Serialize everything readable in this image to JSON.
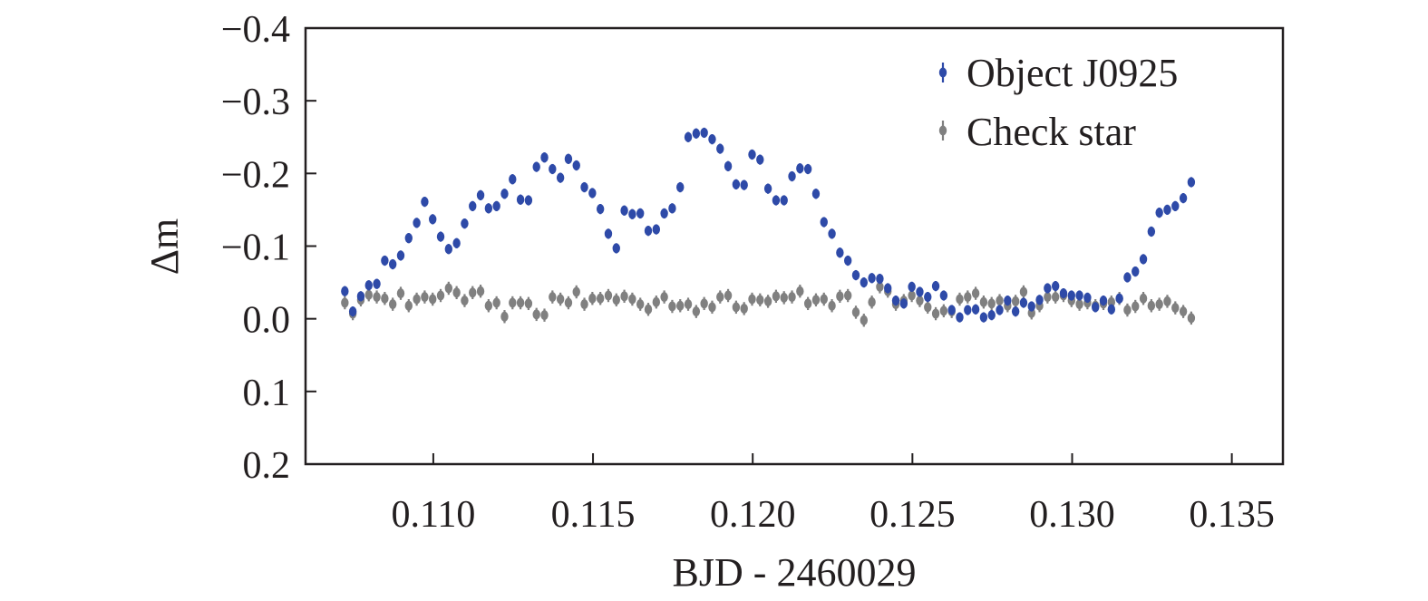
{
  "chart_data": {
    "type": "scatter",
    "title": "",
    "xlabel": "BJD - 2460029",
    "ylabel": "Δm",
    "xlim": [
      0.106,
      0.1366
    ],
    "ylim": [
      0.2,
      -0.4
    ],
    "y_inverted": true,
    "grid": false,
    "legend_position": "top-right",
    "x_ticks": [
      {
        "value": 0.11,
        "label": "0.110"
      },
      {
        "value": 0.115,
        "label": "0.115"
      },
      {
        "value": 0.12,
        "label": "0.120"
      },
      {
        "value": 0.125,
        "label": "0.125"
      },
      {
        "value": 0.13,
        "label": "0.130"
      },
      {
        "value": 0.135,
        "label": "0.135"
      }
    ],
    "y_ticks": [
      {
        "value": -0.4,
        "label": "−0.4"
      },
      {
        "value": -0.3,
        "label": "−0.3"
      },
      {
        "value": -0.2,
        "label": "−0.2"
      },
      {
        "value": -0.1,
        "label": "−0.1"
      },
      {
        "value": 0.0,
        "label": "0.0"
      },
      {
        "value": 0.1,
        "label": "0.1"
      },
      {
        "value": 0.2,
        "label": "0.2"
      }
    ],
    "series": [
      {
        "name": "Object J0925",
        "color": "#2e4aa8",
        "error": 0.007,
        "points": [
          [
            0.10723,
            -0.038
          ],
          [
            0.10748,
            -0.01
          ],
          [
            0.10773,
            -0.031
          ],
          [
            0.10798,
            -0.046
          ],
          [
            0.10823,
            -0.048
          ],
          [
            0.10848,
            -0.08
          ],
          [
            0.10873,
            -0.075
          ],
          [
            0.10898,
            -0.087
          ],
          [
            0.10923,
            -0.111
          ],
          [
            0.10948,
            -0.132
          ],
          [
            0.10973,
            -0.161
          ],
          [
            0.10998,
            -0.137
          ],
          [
            0.11023,
            -0.113
          ],
          [
            0.11048,
            -0.096
          ],
          [
            0.11073,
            -0.104
          ],
          [
            0.11098,
            -0.131
          ],
          [
            0.11123,
            -0.155
          ],
          [
            0.11148,
            -0.17
          ],
          [
            0.11173,
            -0.152
          ],
          [
            0.11198,
            -0.155
          ],
          [
            0.11223,
            -0.172
          ],
          [
            0.11248,
            -0.192
          ],
          [
            0.11273,
            -0.164
          ],
          [
            0.11298,
            -0.163
          ],
          [
            0.11323,
            -0.209
          ],
          [
            0.11348,
            -0.222
          ],
          [
            0.11373,
            -0.206
          ],
          [
            0.11398,
            -0.194
          ],
          [
            0.11423,
            -0.22
          ],
          [
            0.11448,
            -0.211
          ],
          [
            0.11473,
            -0.181
          ],
          [
            0.11498,
            -0.173
          ],
          [
            0.11523,
            -0.151
          ],
          [
            0.11548,
            -0.117
          ],
          [
            0.11573,
            -0.097
          ],
          [
            0.11598,
            -0.149
          ],
          [
            0.11623,
            -0.144
          ],
          [
            0.11648,
            -0.145
          ],
          [
            0.11673,
            -0.121
          ],
          [
            0.11698,
            -0.123
          ],
          [
            0.11723,
            -0.145
          ],
          [
            0.11748,
            -0.152
          ],
          [
            0.11773,
            -0.181
          ],
          [
            0.11798,
            -0.25
          ],
          [
            0.11823,
            -0.255
          ],
          [
            0.11848,
            -0.256
          ],
          [
            0.11873,
            -0.247
          ],
          [
            0.11898,
            -0.234
          ],
          [
            0.11923,
            -0.21
          ],
          [
            0.11948,
            -0.185
          ],
          [
            0.11973,
            -0.184
          ],
          [
            0.11998,
            -0.226
          ],
          [
            0.12023,
            -0.219
          ],
          [
            0.12048,
            -0.179
          ],
          [
            0.12073,
            -0.163
          ],
          [
            0.12098,
            -0.163
          ],
          [
            0.12123,
            -0.196
          ],
          [
            0.12148,
            -0.207
          ],
          [
            0.12173,
            -0.206
          ],
          [
            0.12198,
            -0.172
          ],
          [
            0.12223,
            -0.133
          ],
          [
            0.12248,
            -0.117
          ],
          [
            0.12273,
            -0.091
          ],
          [
            0.12298,
            -0.08
          ],
          [
            0.12323,
            -0.06
          ],
          [
            0.12348,
            -0.05
          ],
          [
            0.12373,
            -0.056
          ],
          [
            0.12398,
            -0.055
          ],
          [
            0.12423,
            -0.042
          ],
          [
            0.12448,
            -0.025
          ],
          [
            0.12473,
            -0.021
          ],
          [
            0.12498,
            -0.044
          ],
          [
            0.12523,
            -0.037
          ],
          [
            0.12548,
            -0.03
          ],
          [
            0.12573,
            -0.045
          ],
          [
            0.12598,
            -0.032
          ],
          [
            0.12623,
            -0.012
          ],
          [
            0.12648,
            -0.002
          ],
          [
            0.12673,
            -0.012
          ],
          [
            0.12698,
            -0.013
          ],
          [
            0.12723,
            -0.002
          ],
          [
            0.12748,
            -0.005
          ],
          [
            0.12773,
            -0.012
          ],
          [
            0.12798,
            -0.025
          ],
          [
            0.12823,
            -0.01
          ],
          [
            0.12848,
            -0.022
          ],
          [
            0.12873,
            -0.017
          ],
          [
            0.12898,
            -0.026
          ],
          [
            0.12923,
            -0.042
          ],
          [
            0.12948,
            -0.045
          ],
          [
            0.12973,
            -0.035
          ],
          [
            0.12998,
            -0.032
          ],
          [
            0.13023,
            -0.032
          ],
          [
            0.13048,
            -0.029
          ],
          [
            0.13073,
            -0.016
          ],
          [
            0.13098,
            -0.025
          ],
          [
            0.13123,
            -0.013
          ],
          [
            0.13148,
            -0.028
          ],
          [
            0.13173,
            -0.057
          ],
          [
            0.13198,
            -0.065
          ],
          [
            0.13223,
            -0.082
          ],
          [
            0.13248,
            -0.12
          ],
          [
            0.13273,
            -0.146
          ],
          [
            0.13298,
            -0.15
          ],
          [
            0.13323,
            -0.155
          ],
          [
            0.13348,
            -0.166
          ],
          [
            0.13373,
            -0.188
          ]
        ]
      },
      {
        "name": "Check star",
        "color": "#808080",
        "error": 0.009,
        "points": [
          [
            0.10723,
            -0.022
          ],
          [
            0.10748,
            -0.007
          ],
          [
            0.10773,
            -0.026
          ],
          [
            0.10798,
            -0.033
          ],
          [
            0.10823,
            -0.03
          ],
          [
            0.10848,
            -0.028
          ],
          [
            0.10873,
            -0.02
          ],
          [
            0.10898,
            -0.035
          ],
          [
            0.10923,
            -0.018
          ],
          [
            0.10948,
            -0.027
          ],
          [
            0.10973,
            -0.03
          ],
          [
            0.10998,
            -0.027
          ],
          [
            0.11023,
            -0.032
          ],
          [
            0.11048,
            -0.042
          ],
          [
            0.11073,
            -0.036
          ],
          [
            0.11098,
            -0.025
          ],
          [
            0.11123,
            -0.036
          ],
          [
            0.11148,
            -0.038
          ],
          [
            0.11173,
            -0.018
          ],
          [
            0.11198,
            -0.022
          ],
          [
            0.11223,
            -0.003
          ],
          [
            0.11248,
            -0.022
          ],
          [
            0.11273,
            -0.022
          ],
          [
            0.11298,
            -0.021
          ],
          [
            0.11323,
            -0.006
          ],
          [
            0.11348,
            -0.005
          ],
          [
            0.11373,
            -0.03
          ],
          [
            0.11398,
            -0.027
          ],
          [
            0.11423,
            -0.022
          ],
          [
            0.11448,
            -0.037
          ],
          [
            0.11473,
            -0.02
          ],
          [
            0.11498,
            -0.028
          ],
          [
            0.11523,
            -0.028
          ],
          [
            0.11548,
            -0.032
          ],
          [
            0.11573,
            -0.026
          ],
          [
            0.11598,
            -0.031
          ],
          [
            0.11623,
            -0.027
          ],
          [
            0.11648,
            -0.02
          ],
          [
            0.11673,
            -0.013
          ],
          [
            0.11698,
            -0.023
          ],
          [
            0.11723,
            -0.03
          ],
          [
            0.11748,
            -0.017
          ],
          [
            0.11773,
            -0.018
          ],
          [
            0.11798,
            -0.02
          ],
          [
            0.11823,
            -0.01
          ],
          [
            0.11848,
            -0.021
          ],
          [
            0.11873,
            -0.016
          ],
          [
            0.11898,
            -0.03
          ],
          [
            0.11923,
            -0.032
          ],
          [
            0.11948,
            -0.016
          ],
          [
            0.11973,
            -0.014
          ],
          [
            0.11998,
            -0.027
          ],
          [
            0.12023,
            -0.026
          ],
          [
            0.12048,
            -0.024
          ],
          [
            0.12073,
            -0.031
          ],
          [
            0.12098,
            -0.029
          ],
          [
            0.12123,
            -0.03
          ],
          [
            0.12148,
            -0.038
          ],
          [
            0.12173,
            -0.021
          ],
          [
            0.12198,
            -0.026
          ],
          [
            0.12223,
            -0.027
          ],
          [
            0.12248,
            -0.018
          ],
          [
            0.12273,
            -0.031
          ],
          [
            0.12298,
            -0.032
          ],
          [
            0.12323,
            -0.009
          ],
          [
            0.12348,
            0.002
          ],
          [
            0.12373,
            -0.023
          ],
          [
            0.12398,
            -0.044
          ],
          [
            0.12423,
            -0.038
          ],
          [
            0.12448,
            -0.02
          ],
          [
            0.12473,
            -0.025
          ],
          [
            0.12498,
            -0.032
          ],
          [
            0.12523,
            -0.025
          ],
          [
            0.12548,
            -0.016
          ],
          [
            0.12573,
            -0.007
          ],
          [
            0.12598,
            -0.011
          ],
          [
            0.12623,
            -0.01
          ],
          [
            0.12648,
            -0.027
          ],
          [
            0.12673,
            -0.03
          ],
          [
            0.12698,
            -0.035
          ],
          [
            0.12723,
            -0.023
          ],
          [
            0.12748,
            -0.021
          ],
          [
            0.12773,
            -0.025
          ],
          [
            0.12798,
            -0.018
          ],
          [
            0.12823,
            -0.024
          ],
          [
            0.12848,
            -0.037
          ],
          [
            0.12873,
            -0.008
          ],
          [
            0.12898,
            -0.018
          ],
          [
            0.12923,
            -0.03
          ],
          [
            0.12948,
            -0.03
          ],
          [
            0.12973,
            -0.032
          ],
          [
            0.12998,
            -0.025
          ],
          [
            0.13023,
            -0.02
          ],
          [
            0.13048,
            -0.022
          ],
          [
            0.13073,
            -0.018
          ],
          [
            0.13098,
            -0.021
          ],
          [
            0.13123,
            -0.023
          ],
          [
            0.13148,
            -0.028
          ],
          [
            0.13173,
            -0.012
          ],
          [
            0.13198,
            -0.017
          ],
          [
            0.13223,
            -0.028
          ],
          [
            0.13248,
            -0.018
          ],
          [
            0.13273,
            -0.02
          ],
          [
            0.13298,
            -0.024
          ],
          [
            0.13323,
            -0.015
          ],
          [
            0.13348,
            -0.01
          ],
          [
            0.13373,
            -0.001
          ]
        ]
      }
    ]
  }
}
